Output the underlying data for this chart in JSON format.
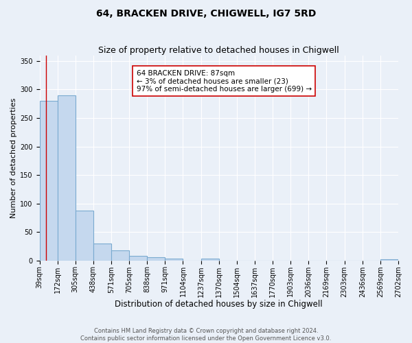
{
  "title": "64, BRACKEN DRIVE, CHIGWELL, IG7 5RD",
  "subtitle": "Size of property relative to detached houses in Chigwell",
  "xlabel": "Distribution of detached houses by size in Chigwell",
  "ylabel": "Number of detached properties",
  "bin_edges": [
    39,
    172,
    305,
    438,
    571,
    705,
    838,
    971,
    1104,
    1237,
    1370,
    1504,
    1637,
    1770,
    1903,
    2036,
    2169,
    2303,
    2436,
    2569,
    2702
  ],
  "bar_heights": [
    280,
    290,
    88,
    30,
    17,
    8,
    5,
    3,
    0,
    3,
    0,
    0,
    0,
    0,
    0,
    0,
    0,
    0,
    0,
    2
  ],
  "bar_color": "#c5d8ee",
  "bar_edge_color": "#7aaad0",
  "bar_edge_width": 0.8,
  "red_line_x": 87,
  "annotation_line1": "64 BRACKEN DRIVE: 87sqm",
  "annotation_line2": "← 3% of detached houses are smaller (23)",
  "annotation_line3": "97% of semi-detached houses are larger (699) →",
  "annotation_box_color": "#ffffff",
  "annotation_box_edge_color": "#cc0000",
  "ylim": [
    0,
    360
  ],
  "yticks": [
    0,
    50,
    100,
    150,
    200,
    250,
    300,
    350
  ],
  "background_color": "#eaf0f8",
  "grid_color": "#ffffff",
  "footer_line1": "Contains HM Land Registry data © Crown copyright and database right 2024.",
  "footer_line2": "Contains public sector information licensed under the Open Government Licence v3.0.",
  "title_fontsize": 10,
  "subtitle_fontsize": 9,
  "xlabel_fontsize": 8.5,
  "ylabel_fontsize": 8,
  "tick_fontsize": 7,
  "annotation_fontsize": 7.5,
  "footer_fontsize": 6
}
